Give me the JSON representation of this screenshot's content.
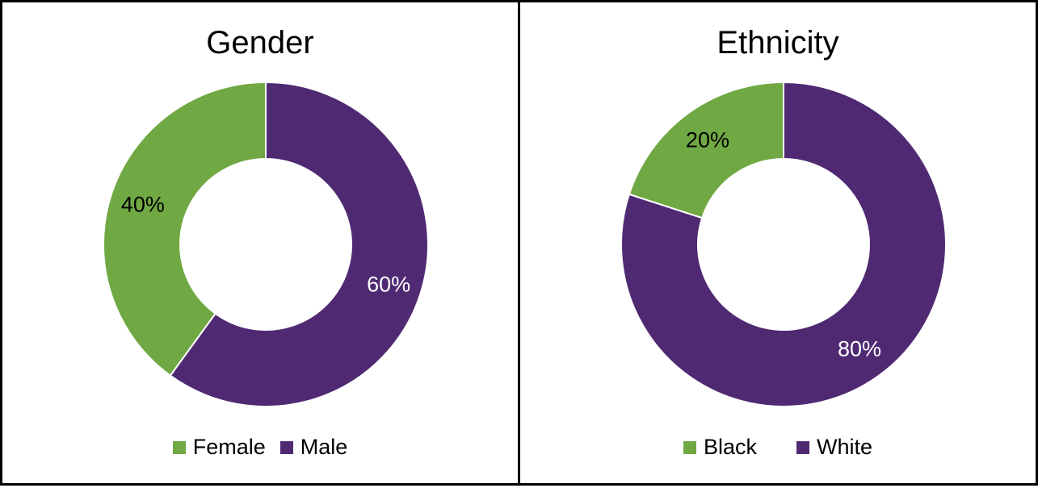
{
  "colors": {
    "green": "#70a844",
    "purple": "#4f2a72",
    "border": "#000000"
  },
  "chart_data": [
    {
      "type": "pie",
      "variant": "donut",
      "title": "Gender",
      "categories": [
        "Female",
        "Male"
      ],
      "values": [
        40,
        60
      ],
      "value_labels": [
        "40%",
        "60%"
      ],
      "legend": "bottom"
    },
    {
      "type": "pie",
      "variant": "donut",
      "title": "Ethnicity",
      "categories": [
        "Black",
        "White"
      ],
      "values": [
        20,
        80
      ],
      "value_labels": [
        "20%",
        "80%"
      ],
      "legend": "bottom"
    }
  ]
}
